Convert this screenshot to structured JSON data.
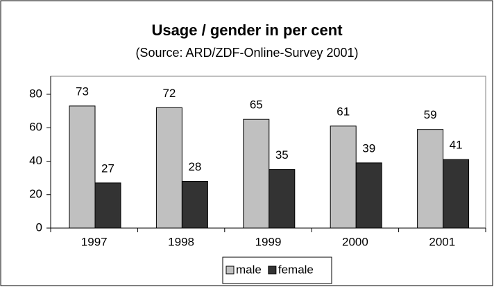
{
  "chart_data": {
    "type": "bar",
    "title": "Usage / gender in per cent",
    "subtitle": "(Source: ARD/ZDF-Online-Survey 2001)",
    "categories": [
      "1997",
      "1998",
      "1999",
      "2000",
      "2001"
    ],
    "series": [
      {
        "name": "male",
        "color": "#c0c0c0",
        "values": [
          73,
          72,
          65,
          61,
          59
        ]
      },
      {
        "name": "female",
        "color": "#333333",
        "values": [
          27,
          28,
          35,
          39,
          41
        ]
      }
    ],
    "ylim": [
      0,
      80
    ],
    "yticks": [
      0,
      20,
      40,
      60,
      80
    ],
    "grid": false,
    "legend": "bottom"
  }
}
